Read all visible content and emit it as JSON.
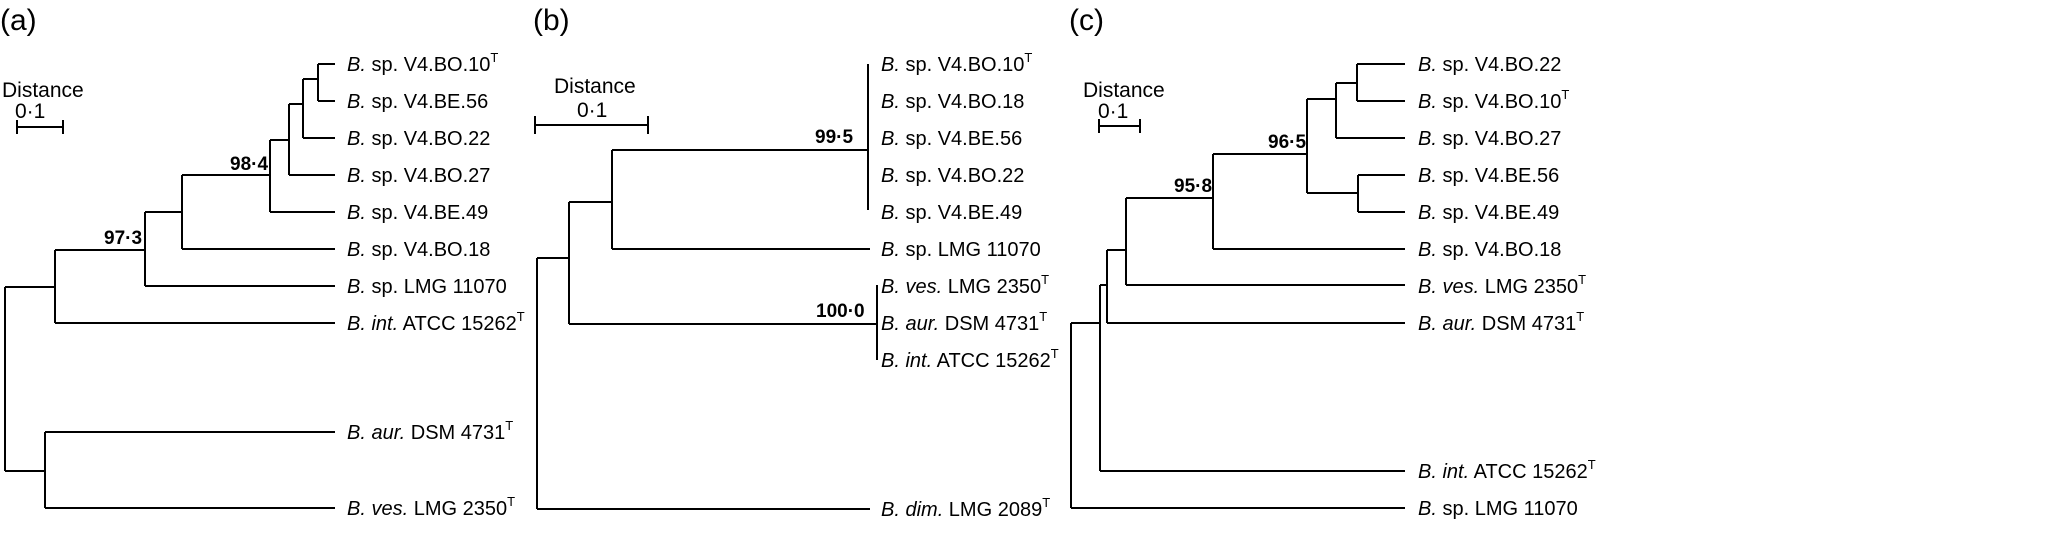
{
  "panels": [
    {
      "label": "(a)",
      "scale": {
        "title": "Distance",
        "value": "0·1"
      },
      "leaves": [
        {
          "genus": "B.",
          "italic": "",
          "rest": " sp. V4.BO.10",
          "sup": "T"
        },
        {
          "genus": "B.",
          "italic": "",
          "rest": " sp. V4.BE.56",
          "sup": ""
        },
        {
          "genus": "B.",
          "italic": "",
          "rest": " sp. V4.BO.22",
          "sup": ""
        },
        {
          "genus": "B.",
          "italic": "",
          "rest": " sp. V4.BO.27",
          "sup": ""
        },
        {
          "genus": "B.",
          "italic": "",
          "rest": " sp. V4.BE.49",
          "sup": ""
        },
        {
          "genus": "B.",
          "italic": "",
          "rest": " sp. V4.BO.18",
          "sup": ""
        },
        {
          "genus": "B.",
          "italic": "",
          "rest": " sp. LMG 11070",
          "sup": ""
        },
        {
          "genus": "B.",
          "italic": " int.",
          "rest": " ATCC 15262",
          "sup": "T"
        },
        {
          "genus": "B.",
          "italic": " aur.",
          "rest": " DSM 4731",
          "sup": "T"
        },
        {
          "genus": "B.",
          "italic": " ves.",
          "rest": " LMG 2350",
          "sup": "T"
        }
      ],
      "bootstrap": [
        "98·4",
        "97·3"
      ]
    },
    {
      "label": "(b)",
      "scale": {
        "title": "Distance",
        "value": "0·1"
      },
      "leaves": [
        {
          "genus": "B.",
          "italic": "",
          "rest": " sp. V4.BO.10",
          "sup": "T"
        },
        {
          "genus": "B.",
          "italic": "",
          "rest": " sp. V4.BO.18",
          "sup": ""
        },
        {
          "genus": "B.",
          "italic": "",
          "rest": " sp. V4.BE.56",
          "sup": ""
        },
        {
          "genus": "B.",
          "italic": "",
          "rest": " sp. V4.BO.22",
          "sup": ""
        },
        {
          "genus": "B.",
          "italic": "",
          "rest": " sp. V4.BE.49",
          "sup": ""
        },
        {
          "genus": "B.",
          "italic": "",
          "rest": " sp. LMG 11070",
          "sup": ""
        },
        {
          "genus": "B.",
          "italic": " ves.",
          "rest": " LMG 2350",
          "sup": "T"
        },
        {
          "genus": "B.",
          "italic": " aur.",
          "rest": " DSM 4731",
          "sup": "T"
        },
        {
          "genus": "B.",
          "italic": " int.",
          "rest": " ATCC 15262",
          "sup": "T"
        },
        {
          "genus": "B.",
          "italic": " dim.",
          "rest": " LMG 2089",
          "sup": "T"
        }
      ],
      "bootstrap": [
        "99·5",
        "100·0"
      ]
    },
    {
      "label": "(c)",
      "scale": {
        "title": "Distance",
        "value": "0·1"
      },
      "leaves": [
        {
          "genus": "B.",
          "italic": "",
          "rest": " sp. V4.BO.22",
          "sup": ""
        },
        {
          "genus": "B.",
          "italic": "",
          "rest": " sp. V4.BO.10",
          "sup": "T"
        },
        {
          "genus": "B.",
          "italic": "",
          "rest": " sp. V4.BO.27",
          "sup": ""
        },
        {
          "genus": "B.",
          "italic": "",
          "rest": " sp. V4.BE.56",
          "sup": ""
        },
        {
          "genus": "B.",
          "italic": "",
          "rest": " sp. V4.BE.49",
          "sup": ""
        },
        {
          "genus": "B.",
          "italic": "",
          "rest": " sp. V4.BO.18",
          "sup": ""
        },
        {
          "genus": "B.",
          "italic": " ves.",
          "rest": " LMG 2350",
          "sup": "T"
        },
        {
          "genus": "B.",
          "italic": " aur.",
          "rest": " DSM 4731",
          "sup": "T"
        },
        {
          "genus": "B.",
          "italic": " int.",
          "rest": " ATCC 15262",
          "sup": "T"
        },
        {
          "genus": "B.",
          "italic": "",
          "rest": " sp. LMG 11070",
          "sup": ""
        }
      ],
      "bootstrap": [
        "96·5",
        "95·8"
      ]
    }
  ]
}
